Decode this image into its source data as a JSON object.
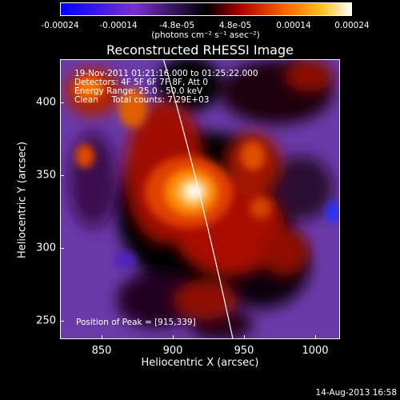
{
  "colorbar": {
    "tick_labels": [
      "-0.00024",
      "-0.00014",
      "-4.8e-05",
      "4.8e-05",
      "0.00014",
      "0.00024"
    ],
    "units": "(photons cm⁻² s⁻¹ asec⁻²)",
    "colors": [
      "#0000ff",
      "#7a2fd0",
      "#000000",
      "#d01000",
      "#ff8a00",
      "#ffffff"
    ]
  },
  "plot": {
    "title": "Reconstructed RHESSI Image",
    "xlabel": "Heliocentric X (arcsec)",
    "ylabel": "Heliocentric Y (arcsec)",
    "x_ticks": [
      "850",
      "900",
      "950",
      "1000"
    ],
    "y_ticks": [
      "400",
      "350",
      "300",
      "250"
    ],
    "xlim": [
      820,
      1015
    ],
    "ylim": [
      232,
      427
    ],
    "info_lines": [
      "19-Nov-2011 01:21:16.000 to 01:25:22.000",
      "Detectors: 4F 5F 6F 7F 8F, Att 0",
      "Energy Range: 25.0 - 50.0 keV",
      "Clean     Total counts: 7.29E+03"
    ],
    "peak_text": "Position of Peak = [915,339]",
    "peak_position": [
      915,
      339
    ],
    "limb_color": "#ffffff"
  },
  "timestamp": "14-Aug-2013 16:58"
}
